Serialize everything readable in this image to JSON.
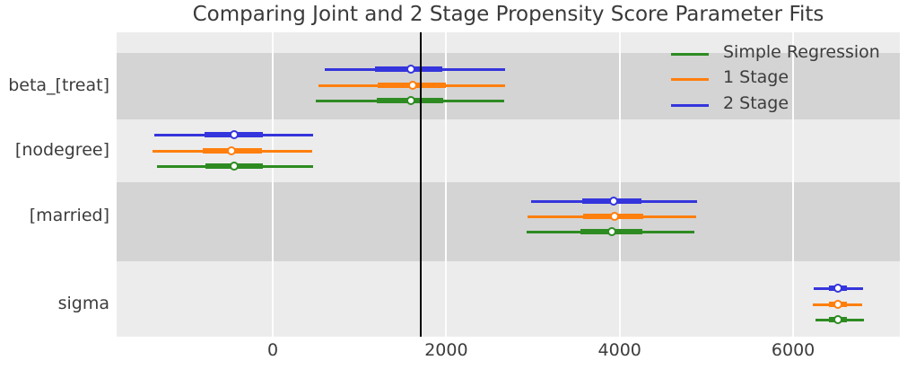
{
  "chart_data": {
    "type": "forest",
    "title": "Comparing Joint and 2 Stage Propensity Score Parameter Fits",
    "xlabel": "",
    "ylabel": "",
    "xlim": [
      -1800,
      7230
    ],
    "x_ticks": [
      0,
      2000,
      4000,
      6000
    ],
    "x_tick_labels": [
      "0",
      "2000",
      "4000",
      "6000"
    ],
    "categories": [
      "beta_[treat]",
      "[nodegree]",
      "[married]",
      "sigma"
    ],
    "reference_line": {
      "x": 1705,
      "color": "#000000"
    },
    "grid": "vertical-white-gridlines",
    "band_shading": "alternating-category-bands",
    "marker": "white circle with colored edge",
    "legend": {
      "position": "upper-right",
      "entries": [
        {
          "label": "Simple Regression",
          "color": "#2e8b22"
        },
        {
          "label": "1 Stage",
          "color": "#ff7f0e"
        },
        {
          "label": "2 Stage",
          "color": "#3535dd"
        }
      ]
    },
    "series": [
      {
        "name": "2 Stage",
        "color": "#3535dd",
        "values": [
          {
            "ci": [
              600,
              2680
            ],
            "hdi": [
              1180,
              1950
            ],
            "point": 1590
          },
          {
            "ci": [
              -1370,
              470
            ],
            "hdi": [
              -790,
              -110
            ],
            "point": -450
          },
          {
            "ci": [
              2980,
              4890
            ],
            "hdi": [
              3570,
              4250
            ],
            "point": 3930
          },
          {
            "ci": [
              6240,
              6810
            ],
            "hdi": [
              6410,
              6620
            ],
            "point": 6520
          }
        ]
      },
      {
        "name": "1 Stage",
        "color": "#ff7f0e",
        "values": [
          {
            "ci": [
              530,
              2680
            ],
            "hdi": [
              1210,
              2000
            ],
            "point": 1610
          },
          {
            "ci": [
              -1390,
              450
            ],
            "hdi": [
              -810,
              -120
            ],
            "point": -480
          },
          {
            "ci": [
              2940,
              4880
            ],
            "hdi": [
              3580,
              4270
            ],
            "point": 3940
          },
          {
            "ci": [
              6230,
              6800
            ],
            "hdi": [
              6410,
              6620
            ],
            "point": 6520
          }
        ]
      },
      {
        "name": "Simple Regression",
        "color": "#2e8b22",
        "values": [
          {
            "ci": [
              500,
              2670
            ],
            "hdi": [
              1200,
              1960
            ],
            "point": 1590
          },
          {
            "ci": [
              -1330,
              470
            ],
            "hdi": [
              -780,
              -110
            ],
            "point": -450
          },
          {
            "ci": [
              2930,
              4860
            ],
            "hdi": [
              3550,
              4260
            ],
            "point": 3910
          },
          {
            "ci": [
              6260,
              6820
            ],
            "hdi": [
              6410,
              6620
            ],
            "point": 6520
          }
        ]
      }
    ]
  }
}
